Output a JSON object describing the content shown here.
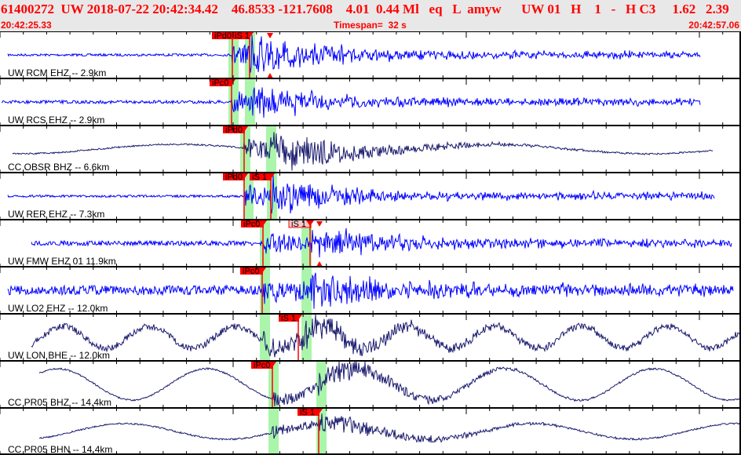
{
  "header": {
    "title": "61400272  UW 2018-07-22 20:42:34.42    46.8533 -121.7608    4.01  0.44 Ml   eq   L  amyw      UW 01   H    1   -   H C3     1.62   2.39",
    "start_time": "20:42:25.33",
    "timespan": "Timespan=  32 s",
    "end_time": "20:42:57.06"
  },
  "colors": {
    "header_text": "#ff0000",
    "trace_hf": "#0000ff",
    "trace_bb": "#1a1a6e",
    "pick": "#ff0000",
    "pick_window": "#aaf5aa"
  },
  "traces": [
    {
      "label": "UW RCM EHZ -- 2.9km",
      "picks": [
        "iPd0",
        "iS 1"
      ]
    },
    {
      "label": "UW RCS EHZ -- 2.9km",
      "picks": [
        "iPc0"
      ]
    },
    {
      "label": "CC OBSR BHZ -- 6.6km",
      "picks": [
        "iPd0"
      ]
    },
    {
      "label": "UW RER EHZ -- 7.3km",
      "picks": [
        "iPd0",
        "iS 1"
      ]
    },
    {
      "label": "UW FMW EHZ 01 11.9km",
      "picks": [
        "iPc0",
        "iS 1"
      ]
    },
    {
      "label": "UW LO2 EHZ -- 12.0km",
      "picks": [
        "iPc0"
      ]
    },
    {
      "label": "UW LON BHE -- 12.0km",
      "picks": [
        "iS 1"
      ]
    },
    {
      "label": "CC PR05 BHZ -- 14.4km",
      "picks": [
        "iPc0"
      ]
    },
    {
      "label": "CC PR05 BHN -- 14.4km",
      "picks": [
        "iS 1"
      ]
    }
  ]
}
